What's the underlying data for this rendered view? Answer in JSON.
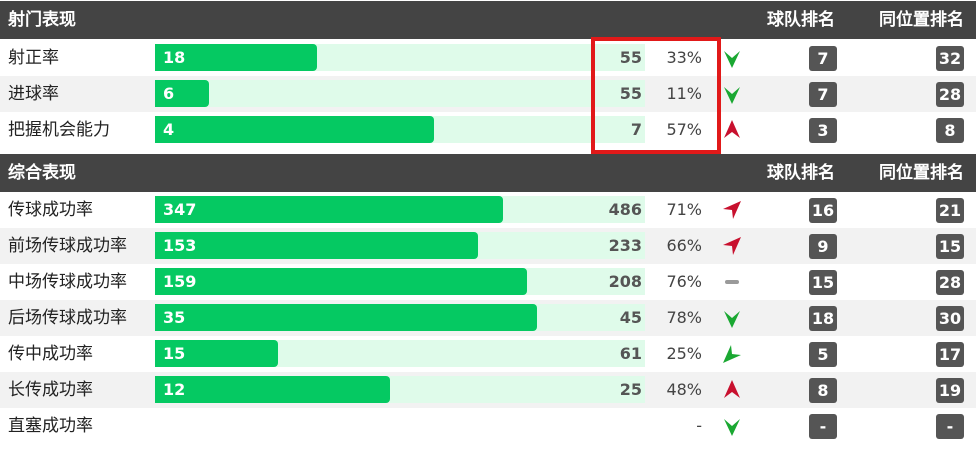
{
  "sections": [
    {
      "title": "射门表现",
      "col_team": "球队排名",
      "col_pos": "同位置排名",
      "rows": [
        {
          "label": "射正率",
          "value": "18",
          "total": "55",
          "pct": "33%",
          "fill": 0.33,
          "trend": "down",
          "team_rank": "7",
          "pos_rank": "32"
        },
        {
          "label": "进球率",
          "value": "6",
          "total": "55",
          "pct": "11%",
          "fill": 0.11,
          "trend": "down",
          "team_rank": "7",
          "pos_rank": "28"
        },
        {
          "label": "把握机会能力",
          "value": "4",
          "total": "7",
          "pct": "57%",
          "fill": 0.57,
          "trend": "up-red",
          "team_rank": "3",
          "pos_rank": "8"
        }
      ]
    },
    {
      "title": "综合表现",
      "col_team": "球队排名",
      "col_pos": "同位置排名",
      "rows": [
        {
          "label": "传球成功率",
          "value": "347",
          "total": "486",
          "pct": "71%",
          "fill": 0.71,
          "trend": "up-right-red",
          "team_rank": "16",
          "pos_rank": "21"
        },
        {
          "label": "前场传球成功率",
          "value": "153",
          "total": "233",
          "pct": "66%",
          "fill": 0.66,
          "trend": "up-right-red",
          "team_rank": "9",
          "pos_rank": "15"
        },
        {
          "label": "中场传球成功率",
          "value": "159",
          "total": "208",
          "pct": "76%",
          "fill": 0.76,
          "trend": "flat",
          "team_rank": "15",
          "pos_rank": "28"
        },
        {
          "label": "后场传球成功率",
          "value": "35",
          "total": "45",
          "pct": "78%",
          "fill": 0.78,
          "trend": "down",
          "team_rank": "18",
          "pos_rank": "30"
        },
        {
          "label": "传中成功率",
          "value": "15",
          "total": "61",
          "pct": "25%",
          "fill": 0.25,
          "trend": "down-left-green",
          "team_rank": "5",
          "pos_rank": "17"
        },
        {
          "label": "长传成功率",
          "value": "12",
          "total": "25",
          "pct": "48%",
          "fill": 0.48,
          "trend": "up-red",
          "team_rank": "8",
          "pos_rank": "19"
        },
        {
          "label": "直塞成功率",
          "value": "",
          "total": "",
          "pct": "-",
          "fill": null,
          "trend": "down",
          "team_rank": "-",
          "pos_rank": "-"
        }
      ]
    }
  ],
  "colors": {
    "header_bg": "#444444",
    "bar_fill": "#05c962",
    "bar_track": "#dffbea",
    "badge_bg": "#555555",
    "trend_red": "#c8102e",
    "trend_green": "#1aa832",
    "trend_flat": "#9a9a9a",
    "highlight": "#e11919"
  }
}
